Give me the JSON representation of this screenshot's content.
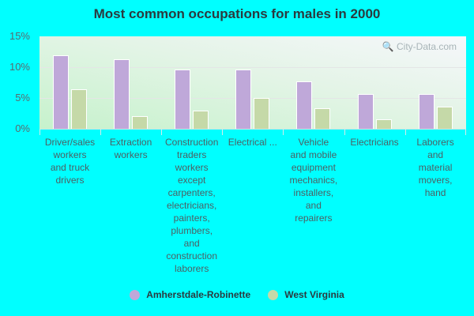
{
  "chart_data": {
    "type": "bar",
    "title": "Most common occupations for males in 2000",
    "xlabel": "",
    "ylabel": "",
    "ylim": [
      0,
      15
    ],
    "yticks": [
      "0%",
      "5%",
      "10%",
      "15%"
    ],
    "grid": true,
    "legend_position": "bottom",
    "categories": [
      "Driver/sales workers and truck drivers",
      "Extraction workers",
      "Construction traders workers except carpenters, electricians, painters, plumbers, and construction laborers",
      "Electrical ...",
      "Vehicle and mobile equipment mechanics, installers, and repairers",
      "Electricians",
      "Laborers and material movers, hand"
    ],
    "series": [
      {
        "name": "Amherstdale-Robinette",
        "color": "#bfa8d9",
        "values": [
          11.9,
          11.3,
          9.6,
          9.6,
          7.7,
          5.6,
          5.6
        ]
      },
      {
        "name": "West Virginia",
        "color": "#c5d9a8",
        "values": [
          6.4,
          2.0,
          2.9,
          5.0,
          3.3,
          1.5,
          3.6
        ]
      }
    ]
  },
  "watermark": "City-Data.com",
  "labels": {
    "cat0": [
      "Driver/sales",
      "workers",
      "and truck",
      "drivers"
    ],
    "cat1": [
      "Extraction",
      "workers"
    ],
    "cat2": [
      "Construction",
      "traders",
      "workers",
      "except",
      "carpenters,",
      "electricians,",
      "painters,",
      "plumbers,",
      "and",
      "construction",
      "laborers"
    ],
    "cat3": [
      "Electrical ..."
    ],
    "cat4": [
      "Vehicle",
      "and mobile",
      "equipment",
      "mechanics,",
      "installers,",
      "and",
      "repairers"
    ],
    "cat5": [
      "Electricians"
    ],
    "cat6": [
      "Laborers",
      "and",
      "material",
      "movers,",
      "hand"
    ]
  }
}
